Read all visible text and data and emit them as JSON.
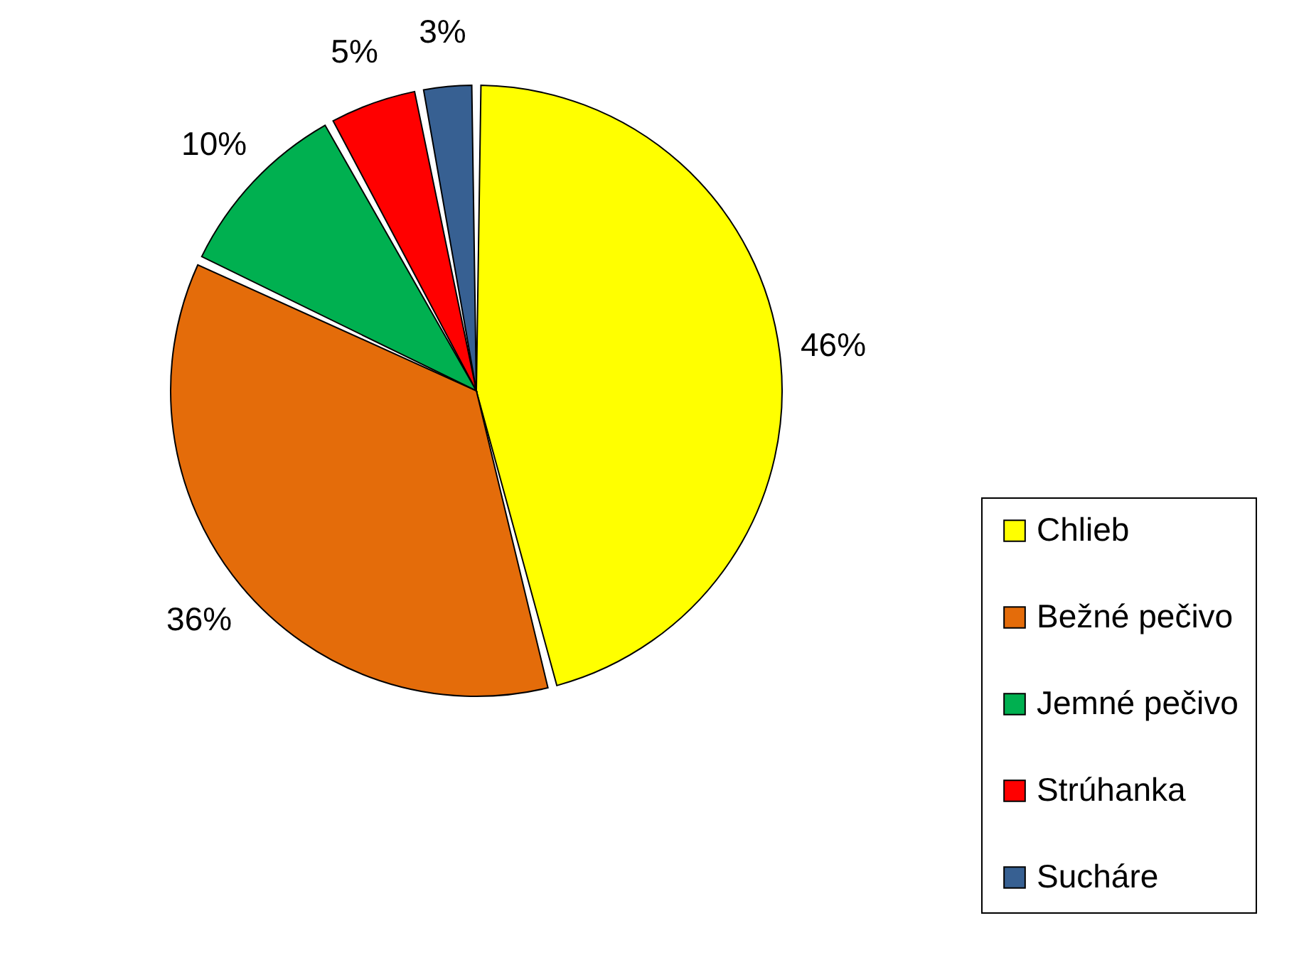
{
  "chart_data": {
    "type": "pie",
    "categories": [
      "Chlieb",
      "Bežné pečivo",
      "Jemné pečivo",
      "Strúhanka",
      "Sucháre"
    ],
    "values": [
      46,
      36,
      10,
      5,
      3
    ],
    "colors": [
      "#ffff00",
      "#e46c0a",
      "#00b050",
      "#ff0000",
      "#376092"
    ],
    "value_labels": [
      "46%",
      "36%",
      "10%",
      "5%",
      "3%"
    ],
    "legend": "bottom right"
  }
}
